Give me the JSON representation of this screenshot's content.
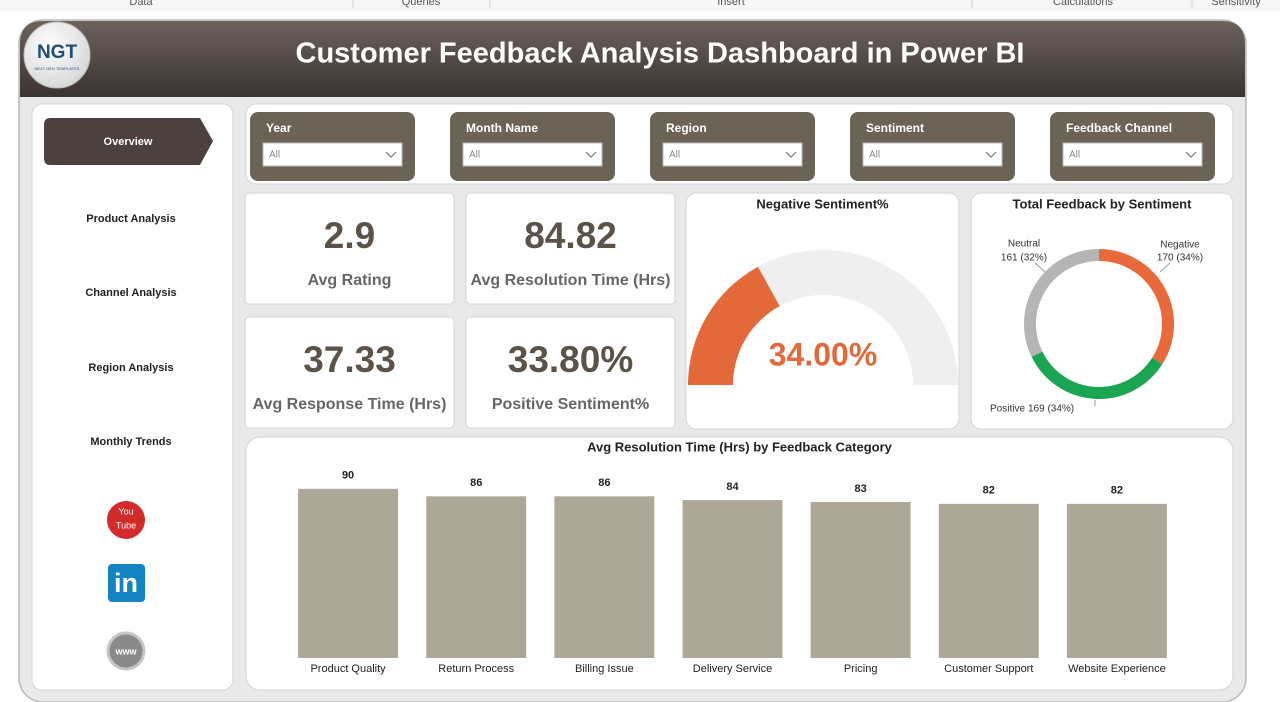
{
  "ribbon": {
    "tabs": [
      "Data",
      "Queries",
      "Insert",
      "Calculations",
      "Sensitivity"
    ]
  },
  "header": {
    "logo": {
      "text": "NGT",
      "subtext": "NEXT GEN TEMPLATES"
    },
    "title": "Customer Feedback Analysis Dashboard in Power BI"
  },
  "nav": {
    "items": [
      "Overview",
      "Product Analysis",
      "Channel Analysis",
      "Region Analysis",
      "Monthly Trends"
    ]
  },
  "social": {
    "youtube": [
      "You",
      "Tube"
    ],
    "linkedin": "in",
    "web": "www"
  },
  "filters": [
    {
      "label": "Year",
      "value": "All"
    },
    {
      "label": "Month Name",
      "value": "All"
    },
    {
      "label": "Region",
      "value": "All"
    },
    {
      "label": "Sentiment",
      "value": "All"
    },
    {
      "label": "Feedback Channel",
      "value": "All"
    }
  ],
  "cards": [
    {
      "value": "2.9",
      "label": "Avg Rating"
    },
    {
      "value": "84.82",
      "label": "Avg Resolution Time (Hrs)"
    },
    {
      "value": "37.33",
      "label": "Avg Response Time (Hrs)"
    },
    {
      "value": "33.80%",
      "label": "Positive Sentiment%"
    }
  ],
  "chart_data": [
    {
      "type": "gauge",
      "title": "Negative Sentiment%",
      "values": [
        34
      ],
      "value_labels": [
        "34.00%"
      ],
      "ylim": [
        0,
        100
      ],
      "color": "#e4693a",
      "track_color": "#f0efef"
    },
    {
      "type": "donut",
      "title": "Total Feedback by Sentiment",
      "categories": [
        "Negative",
        "Positive",
        "Neutral"
      ],
      "values": [
        170,
        169,
        161
      ],
      "value_labels": [
        "170 (34%)",
        "169 (34%)",
        "161 (32%)"
      ],
      "colors": [
        "#e8693a",
        "#1aa552",
        "#b5b5b5"
      ]
    },
    {
      "type": "bar",
      "title": "Avg Resolution Time (Hrs) by Feedback Category",
      "categories": [
        "Product Quality",
        "Return Process",
        "Billing Issue",
        "Delivery Service",
        "Pricing",
        "Customer Support",
        "Website Experience"
      ],
      "values": [
        90,
        86,
        86,
        84,
        83,
        82,
        82
      ],
      "color": "#aca797",
      "ylim": [
        0,
        100
      ]
    }
  ]
}
